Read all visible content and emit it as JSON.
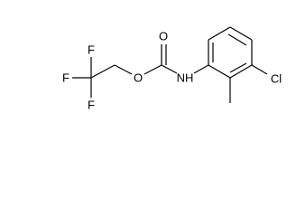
{
  "molecule": {
    "atoms": [
      {
        "label": "F"
      },
      {
        "label": "F"
      },
      {
        "label": "F"
      },
      {
        "label": "O"
      },
      {
        "label": "O"
      },
      {
        "label": "NH"
      },
      {
        "label": "Cl"
      }
    ]
  }
}
